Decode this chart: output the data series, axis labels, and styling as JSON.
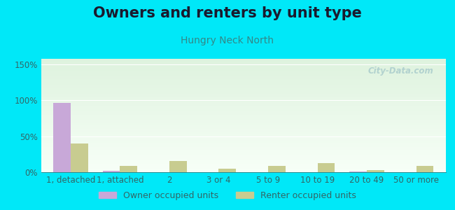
{
  "title": "Owners and renters by unit type",
  "subtitle": "Hungry Neck North",
  "categories": [
    "1, detached",
    "1, attached",
    "2",
    "3 or 4",
    "5 to 9",
    "10 to 19",
    "20 to 49",
    "50 or more"
  ],
  "owner_values": [
    97,
    2,
    0,
    0,
    0,
    0,
    1,
    0
  ],
  "renter_values": [
    40,
    9,
    16,
    5,
    9,
    13,
    3,
    9
  ],
  "owner_color": "#c8a8d8",
  "renter_color": "#c8cc90",
  "background_outer": "#00e8f8",
  "background_plot_top": "#dff2de",
  "background_plot_bottom": "#f8fffa",
  "yticks": [
    0,
    50,
    100,
    150
  ],
  "ytick_labels": [
    "0%",
    "50%",
    "100%",
    "150%"
  ],
  "ylim": [
    0,
    158
  ],
  "bar_width": 0.35,
  "watermark": "City-Data.com",
  "title_fontsize": 15,
  "subtitle_fontsize": 10,
  "tick_fontsize": 8.5,
  "legend_fontsize": 9,
  "axis_color": "#336666"
}
